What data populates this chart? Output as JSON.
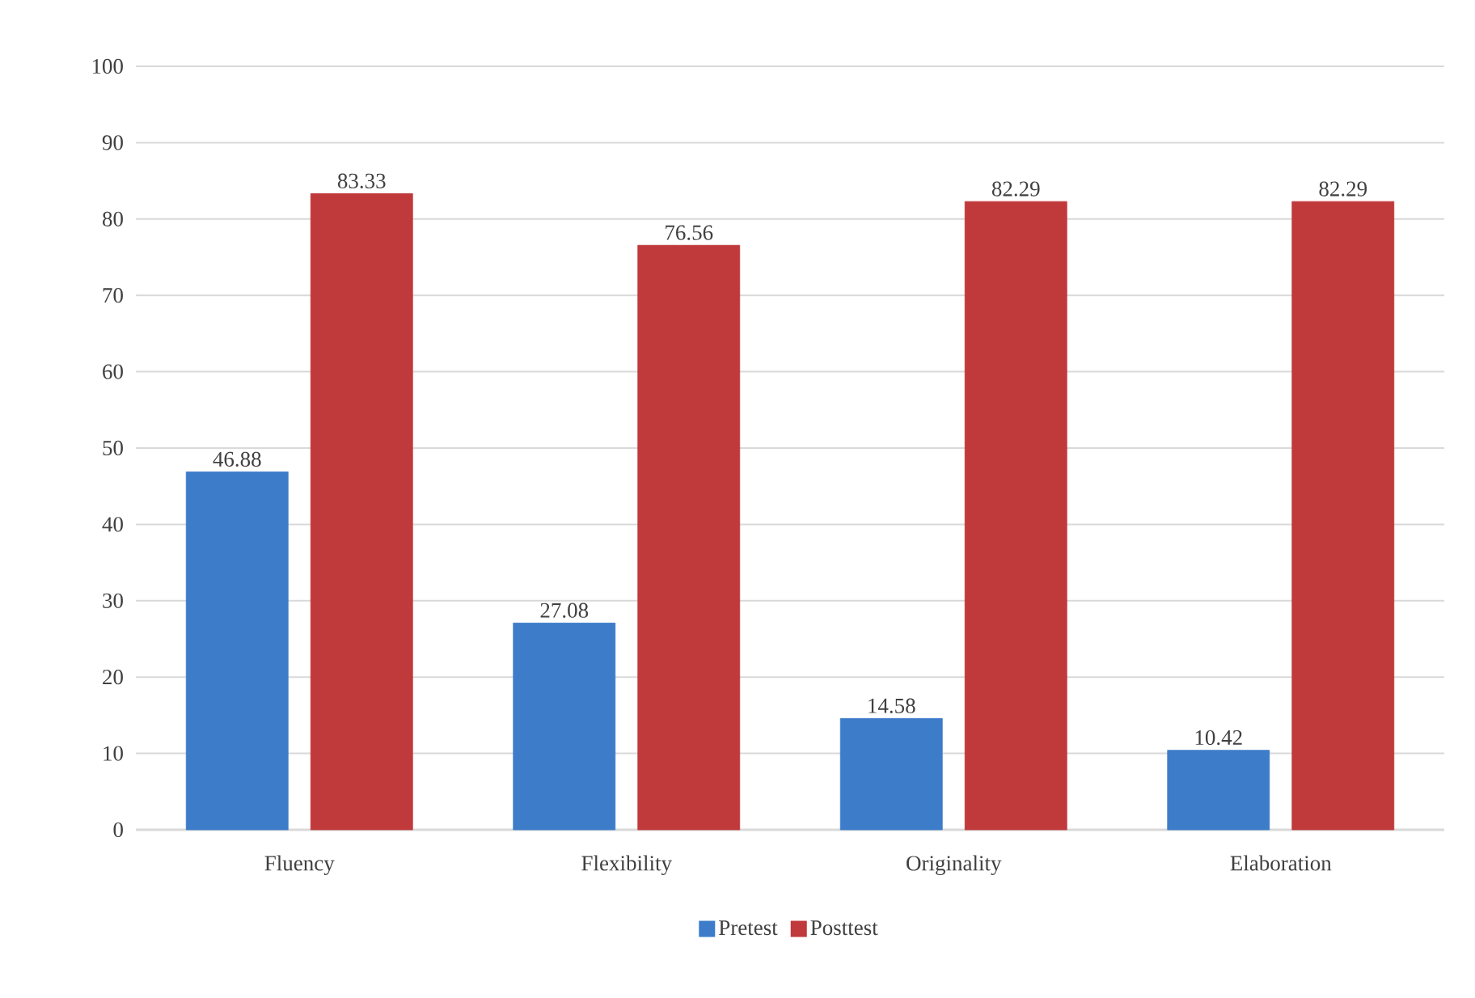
{
  "chart_data": {
    "type": "bar",
    "categories": [
      "Fluency",
      "Flexibility",
      "Originality",
      "Elaboration"
    ],
    "series": [
      {
        "name": "Pretest",
        "color": "#3d7cc9",
        "values": [
          46.88,
          27.08,
          14.58,
          10.42
        ]
      },
      {
        "name": "Posttest",
        "color": "#c0393b",
        "values": [
          83.33,
          76.56,
          82.29,
          82.29
        ]
      }
    ],
    "ylim": [
      0,
      100
    ],
    "yticks": [
      0,
      10,
      20,
      30,
      40,
      50,
      60,
      70,
      80,
      90,
      100
    ],
    "grid": "y",
    "legend": "bottom",
    "data_labels": true
  }
}
